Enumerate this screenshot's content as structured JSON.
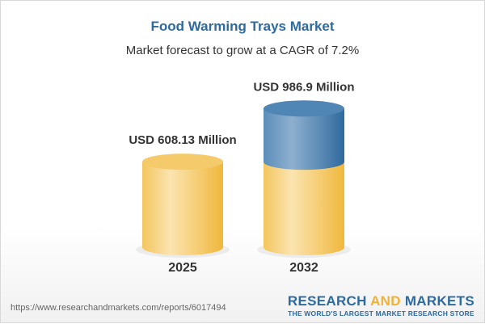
{
  "header": {
    "title": "Food Warming Trays Market",
    "subtitle": "Market forecast to grow at a CAGR of 7.2%"
  },
  "chart_data": {
    "type": "bar",
    "style": "3d-cylinder",
    "title": "Food Warming Trays Market",
    "subtitle": "Market forecast to grow at a CAGR of 7.2%",
    "categories": [
      "2025",
      "2032"
    ],
    "values": [
      608.13,
      986.9
    ],
    "data_labels": [
      "USD 608.13 Million",
      "USD 986.9 Million"
    ],
    "unit": "USD Million",
    "colors": {
      "base": "#f2c14e",
      "growth": "#4a82b4"
    },
    "grid": false
  },
  "footer": {
    "url": "https://www.researchandmarkets.com/reports/6017494",
    "logo_part1": "RESEARCH ",
    "logo_part2": "AND",
    "logo_part3": " MARKETS",
    "tagline": "THE WORLD'S LARGEST MARKET RESEARCH STORE"
  }
}
